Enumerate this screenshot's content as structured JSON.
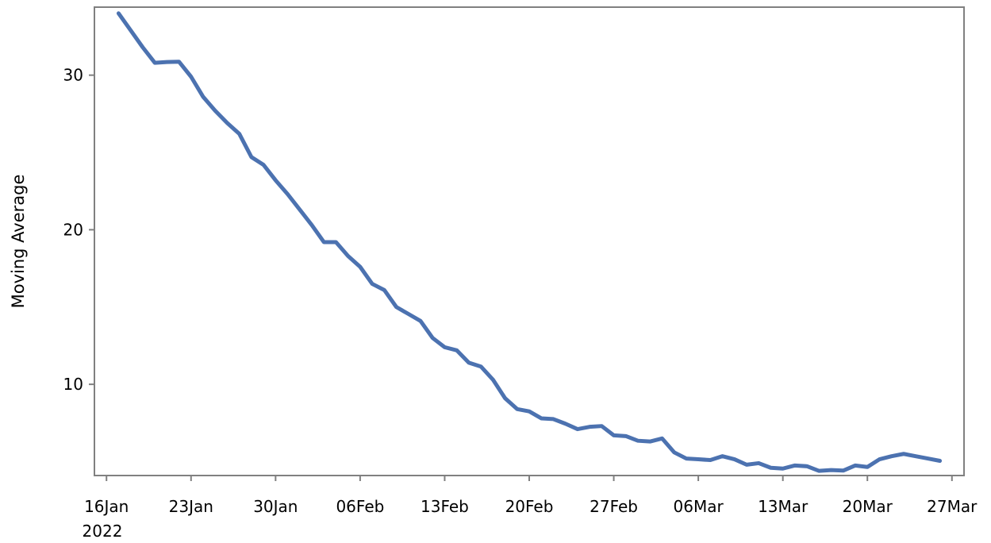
{
  "chart_data": {
    "type": "line",
    "title": "",
    "xlabel": "",
    "ylabel": "Moving Average",
    "x_tick_labels": [
      "16Jan",
      "23Jan",
      "30Jan",
      "06Feb",
      "13Feb",
      "20Feb",
      "27Feb",
      "06Mar",
      "13Mar",
      "20Mar",
      "27Mar"
    ],
    "x_tick_dates": [
      "2022-01-16",
      "2022-01-23",
      "2022-01-30",
      "2022-02-06",
      "2022-02-13",
      "2022-02-20",
      "2022-02-27",
      "2022-03-06",
      "2022-03-13",
      "2022-03-20",
      "2022-03-27"
    ],
    "x_year_label": "2022",
    "y_ticks": [
      10,
      20,
      30
    ],
    "xlim": [
      "2022-01-15",
      "2022-03-28"
    ],
    "ylim": [
      4.1,
      34.4
    ],
    "grid": false,
    "line_color": "#4c72b0",
    "series": [
      {
        "x": [
          "2022-01-17",
          "2022-01-18",
          "2022-01-19",
          "2022-01-20",
          "2022-01-21",
          "2022-01-22",
          "2022-01-23",
          "2022-01-24",
          "2022-01-25",
          "2022-01-26",
          "2022-01-27",
          "2022-01-28",
          "2022-01-29",
          "2022-01-30",
          "2022-01-31",
          "2022-02-01",
          "2022-02-02",
          "2022-02-03",
          "2022-02-04",
          "2022-02-05",
          "2022-02-06",
          "2022-02-07",
          "2022-02-08",
          "2022-02-09",
          "2022-02-10",
          "2022-02-11",
          "2022-02-12",
          "2022-02-13",
          "2022-02-14",
          "2022-02-15",
          "2022-02-16",
          "2022-02-17",
          "2022-02-18",
          "2022-02-19",
          "2022-02-20",
          "2022-02-21",
          "2022-02-22",
          "2022-02-23",
          "2022-02-24",
          "2022-02-25",
          "2022-02-26",
          "2022-02-27",
          "2022-02-28",
          "2022-03-01",
          "2022-03-02",
          "2022-03-03",
          "2022-03-04",
          "2022-03-05",
          "2022-03-06",
          "2022-03-07",
          "2022-03-08",
          "2022-03-09",
          "2022-03-10",
          "2022-03-11",
          "2022-03-12",
          "2022-03-13",
          "2022-03-14",
          "2022-03-15",
          "2022-03-16",
          "2022-03-17",
          "2022-03-18",
          "2022-03-19",
          "2022-03-20",
          "2022-03-21",
          "2022-03-22",
          "2022-03-23",
          "2022-03-24",
          "2022-03-25",
          "2022-03-26"
        ],
        "y": [
          34.0,
          32.9,
          31.8,
          30.8,
          30.85,
          30.87,
          29.9,
          28.6,
          27.7,
          26.9,
          26.2,
          24.7,
          24.2,
          23.2,
          22.3,
          21.3,
          20.3,
          19.2,
          19.2,
          18.3,
          17.6,
          16.5,
          16.1,
          15.0,
          14.55,
          14.1,
          13.0,
          12.4,
          12.2,
          11.4,
          11.15,
          10.3,
          9.1,
          8.4,
          8.25,
          7.8,
          7.75,
          7.45,
          7.1,
          7.25,
          7.3,
          6.7,
          6.65,
          6.35,
          6.3,
          6.5,
          5.6,
          5.2,
          5.15,
          5.1,
          5.35,
          5.15,
          4.8,
          4.9,
          4.6,
          4.55,
          4.75,
          4.7,
          4.4,
          4.45,
          4.42,
          4.75,
          4.65,
          5.15,
          5.35,
          5.5,
          5.35,
          5.2,
          5.05
        ]
      }
    ]
  }
}
